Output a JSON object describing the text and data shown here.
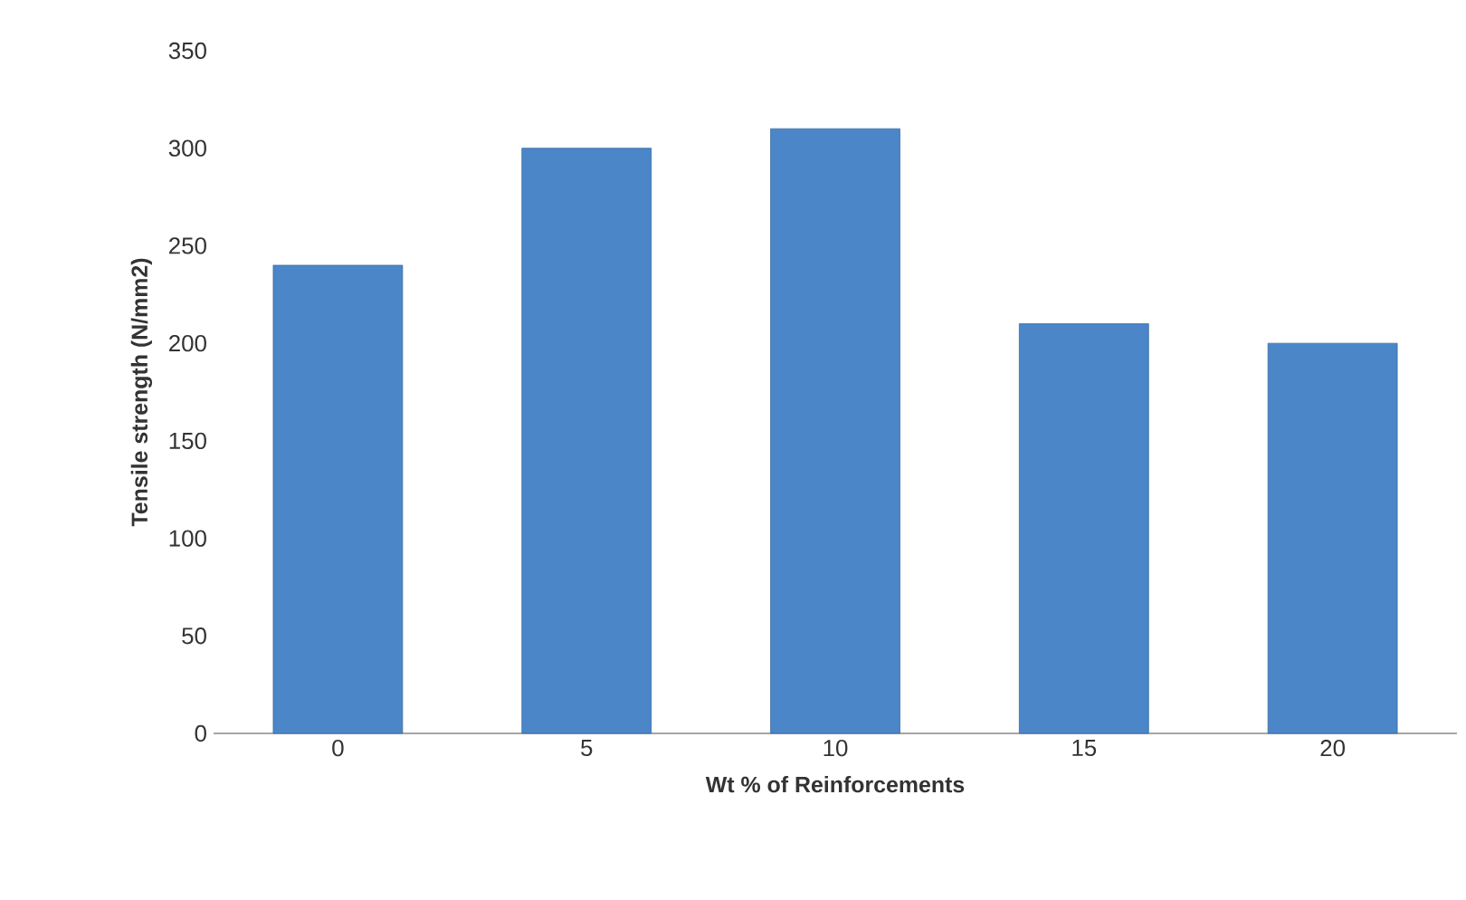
{
  "chart_data": {
    "type": "bar",
    "xlabel": "Wt % of Reinforcements",
    "ylabel": "Tensile strength (N/mm2)",
    "categories": [
      "0",
      "5",
      "10",
      "15",
      "20"
    ],
    "values": [
      240,
      300,
      310,
      210,
      200
    ],
    "color": "#4a86c8",
    "ylim": [
      0,
      350
    ],
    "yticks": [
      0,
      50,
      100,
      150,
      200,
      250,
      300,
      350
    ],
    "grid": false
  }
}
